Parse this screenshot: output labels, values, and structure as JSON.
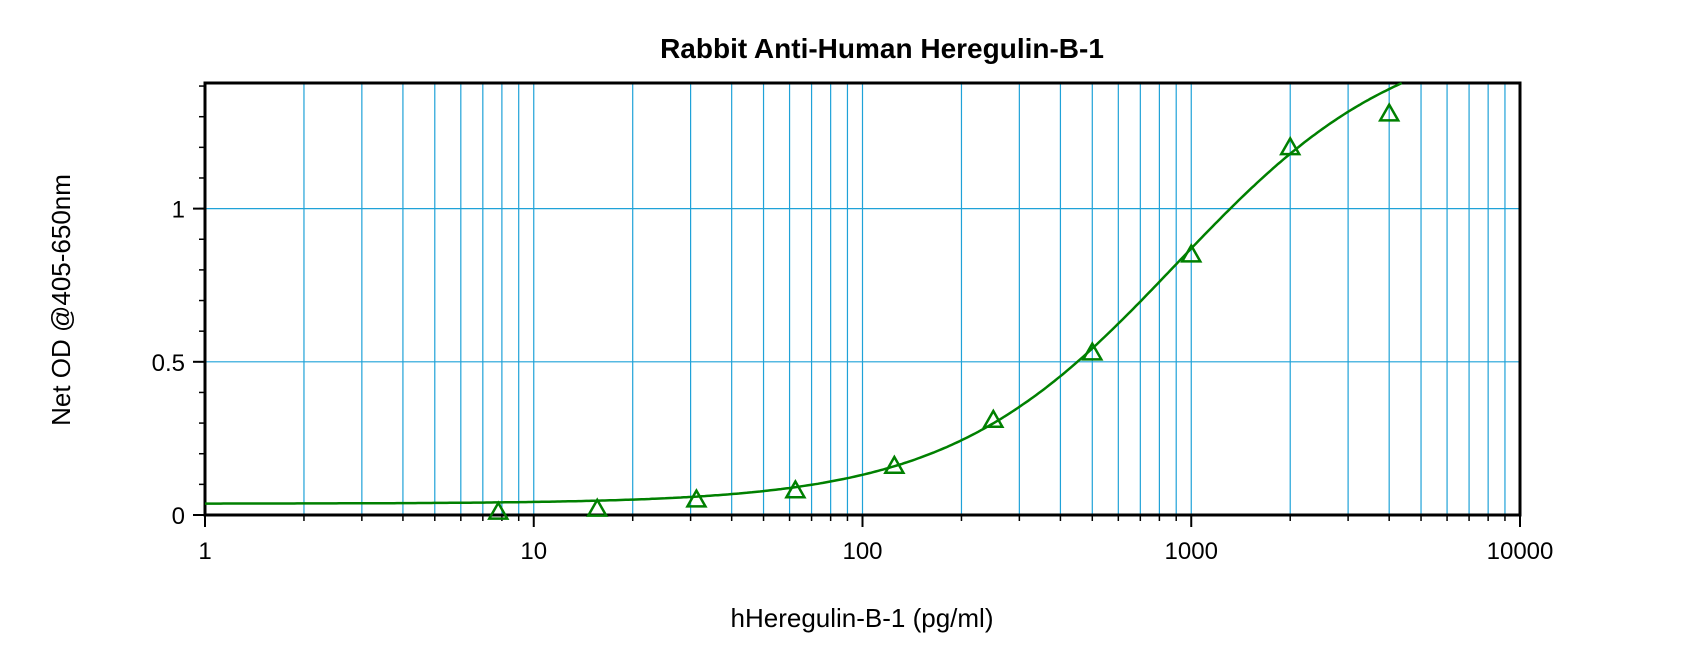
{
  "chart_data": {
    "type": "scatter",
    "title": "Rabbit Anti-Human Heregulin-B-1",
    "xlabel": "hHeregulin-B-1 (pg/ml)",
    "ylabel": "Net OD @405-650nm",
    "x_scale": "log",
    "xlim": [
      1,
      10000
    ],
    "ylim": [
      0,
      1.41
    ],
    "x_ticks": [
      1,
      10,
      100,
      1000,
      10000
    ],
    "x_tick_labels": [
      "1",
      "10",
      "100",
      "1000",
      "10000"
    ],
    "y_ticks": [
      0,
      0.5,
      1
    ],
    "y_tick_labels": [
      "0",
      "0.5",
      "1"
    ],
    "grid": true,
    "colors": {
      "series": "#008000",
      "grid": "#1fa2d8",
      "axes": "#000000"
    },
    "series": [
      {
        "marker": "triangle",
        "x": [
          7.8,
          15.6,
          31.25,
          62.5,
          125,
          250,
          500,
          1000,
          2000,
          4000
        ],
        "y": [
          0.01,
          0.02,
          0.05,
          0.08,
          0.16,
          0.31,
          0.53,
          0.85,
          1.2,
          1.31
        ]
      }
    ],
    "fit_curve": {
      "type": "4PL",
      "bottom": 0.037,
      "top": 1.6,
      "ec50": 900,
      "hill": 1.25
    }
  }
}
